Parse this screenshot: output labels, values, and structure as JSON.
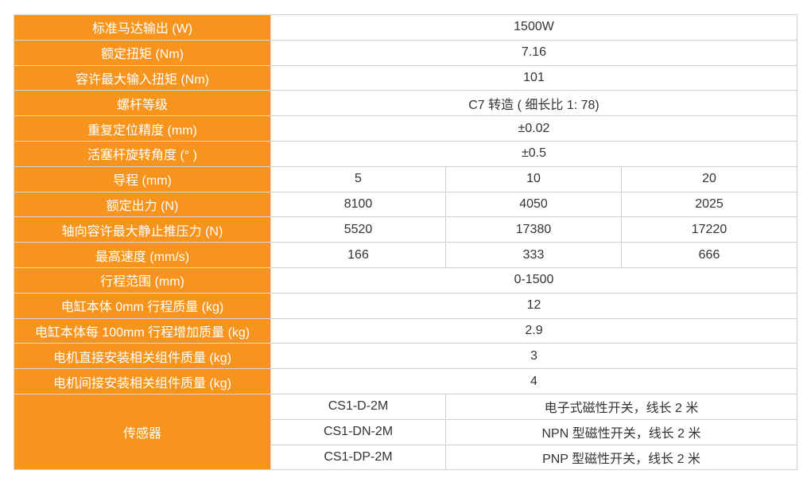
{
  "accent_color": "#F7941D",
  "rows": [
    {
      "label": "标准马达输出 (W)",
      "values": [
        "1500W"
      ]
    },
    {
      "label": "额定扭矩 (Nm)",
      "values": [
        "7.16"
      ]
    },
    {
      "label": "容许最大输入扭矩 (Nm)",
      "values": [
        "101"
      ]
    },
    {
      "label": "螺杆等级",
      "values": [
        "C7 转造 ( 细长比 1: 78)"
      ]
    },
    {
      "label": "重复定位精度 (mm)",
      "values": [
        "±0.02"
      ]
    },
    {
      "label": "活塞杆旋转角度 (° )",
      "values": [
        "±0.5"
      ]
    },
    {
      "label": "导程 (mm)",
      "values": [
        "5",
        "10",
        "20"
      ]
    },
    {
      "label": "额定出力 (N)",
      "values": [
        "8100",
        "4050",
        "2025"
      ]
    },
    {
      "label": "轴向容许最大静止推压力 (N)",
      "values": [
        "5520",
        "17380",
        "17220"
      ]
    },
    {
      "label": "最高速度 (mm/s)",
      "values": [
        "166",
        "333",
        "666"
      ]
    },
    {
      "label": "行程范围 (mm)",
      "values": [
        "0-1500"
      ]
    },
    {
      "label": "电缸本体 0mm 行程质量 (kg)",
      "values": [
        "12"
      ]
    },
    {
      "label": "电缸本体每 100mm 行程增加质量 (kg)",
      "values": [
        "2.9"
      ]
    },
    {
      "label": "电机直接安装相关组件质量 (kg)",
      "values": [
        "3"
      ]
    },
    {
      "label": "电机间接安装相关组件质量 (kg)",
      "values": [
        "4"
      ]
    }
  ],
  "sensor": {
    "label": "传感器",
    "items": [
      {
        "model": "CS1-D-2M",
        "desc": "电子式磁性开关，线长 2 米"
      },
      {
        "model": "CS1-DN-2M",
        "desc": "NPN 型磁性开关，线长 2 米"
      },
      {
        "model": "CS1-DP-2M",
        "desc": "PNP 型磁性开关，线长 2 米"
      }
    ]
  }
}
